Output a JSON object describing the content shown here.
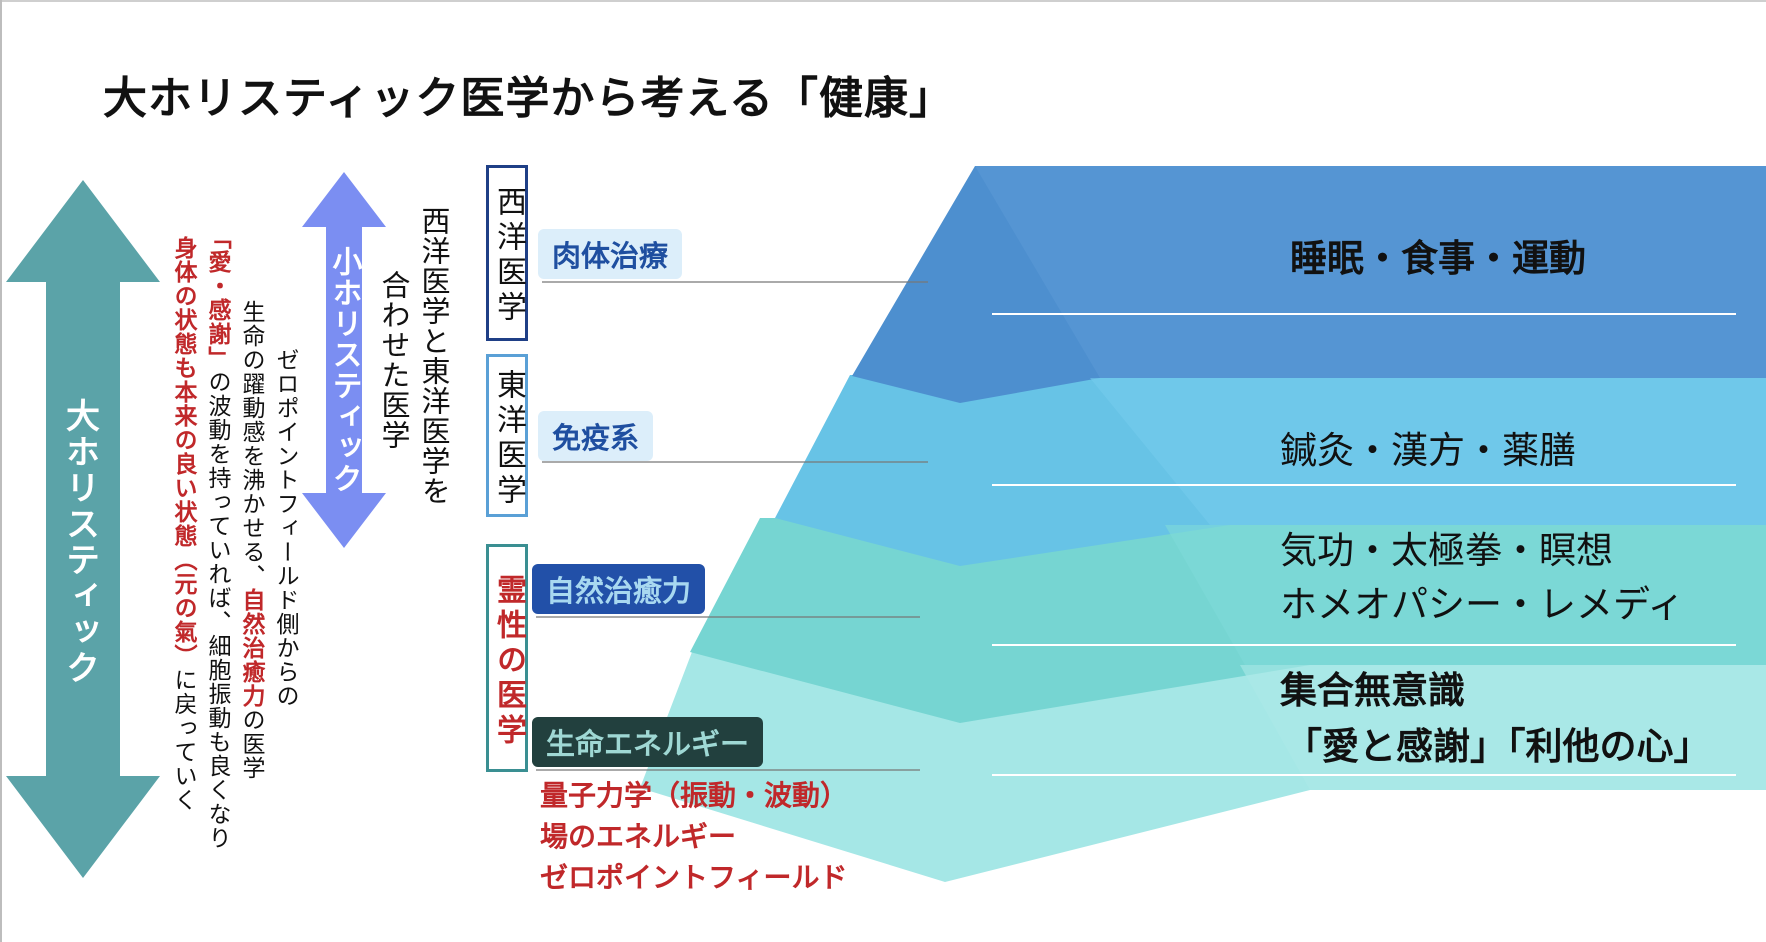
{
  "title": "大ホリスティック医学から考える「健康」",
  "big_arrow": {
    "label": "大ホリスティック",
    "color": "#5ba3a8"
  },
  "small_arrow": {
    "label": "小ホリスティック",
    "color": "#7b8ef2"
  },
  "western_eastern": {
    "line1": "西洋医学と東洋医学を",
    "line2": "合わせた医学"
  },
  "zero_point": {
    "col1": "ゼロポイントフィールド側からの",
    "col2_a": "生命の躍動感を沸かせる、",
    "col2_b": "自然治癒力",
    "col2_c": "の医学",
    "col3_a": "「愛・感謝」",
    "col3_b": "の波動を持っていれば、細胞振動も良くなり",
    "col4_a": "身体の状態も本来の良い状態（元の氣）",
    "col4_b": "に戻っていく"
  },
  "boxes": {
    "western": "西洋医学",
    "eastern": "東洋医学",
    "spiritual": "霊性の医学"
  },
  "tags": {
    "body": "肉体治療",
    "immune": "免疫系",
    "natural": "自然治癒力",
    "life": "生命エネルギー"
  },
  "red_list": [
    "量子力学（振動・波動）",
    "場のエネルギー",
    "ゼロポイントフィールド"
  ],
  "levels": {
    "l1": "睡眠・食事・運動",
    "l2": "鍼灸・漢方・薬膳",
    "l3a": "気功・太極拳・瞑想",
    "l3b": "ホメオパシー・レメディ",
    "l4a": "集合無意識",
    "l4b": "「愛と感謝」「利他の心」"
  },
  "colors": {
    "band1": "#4d8fcf",
    "band2": "#67c3e6",
    "band3": "#76d5d2",
    "band4": "#a5e7e6",
    "accent_red": "#c0282a"
  }
}
